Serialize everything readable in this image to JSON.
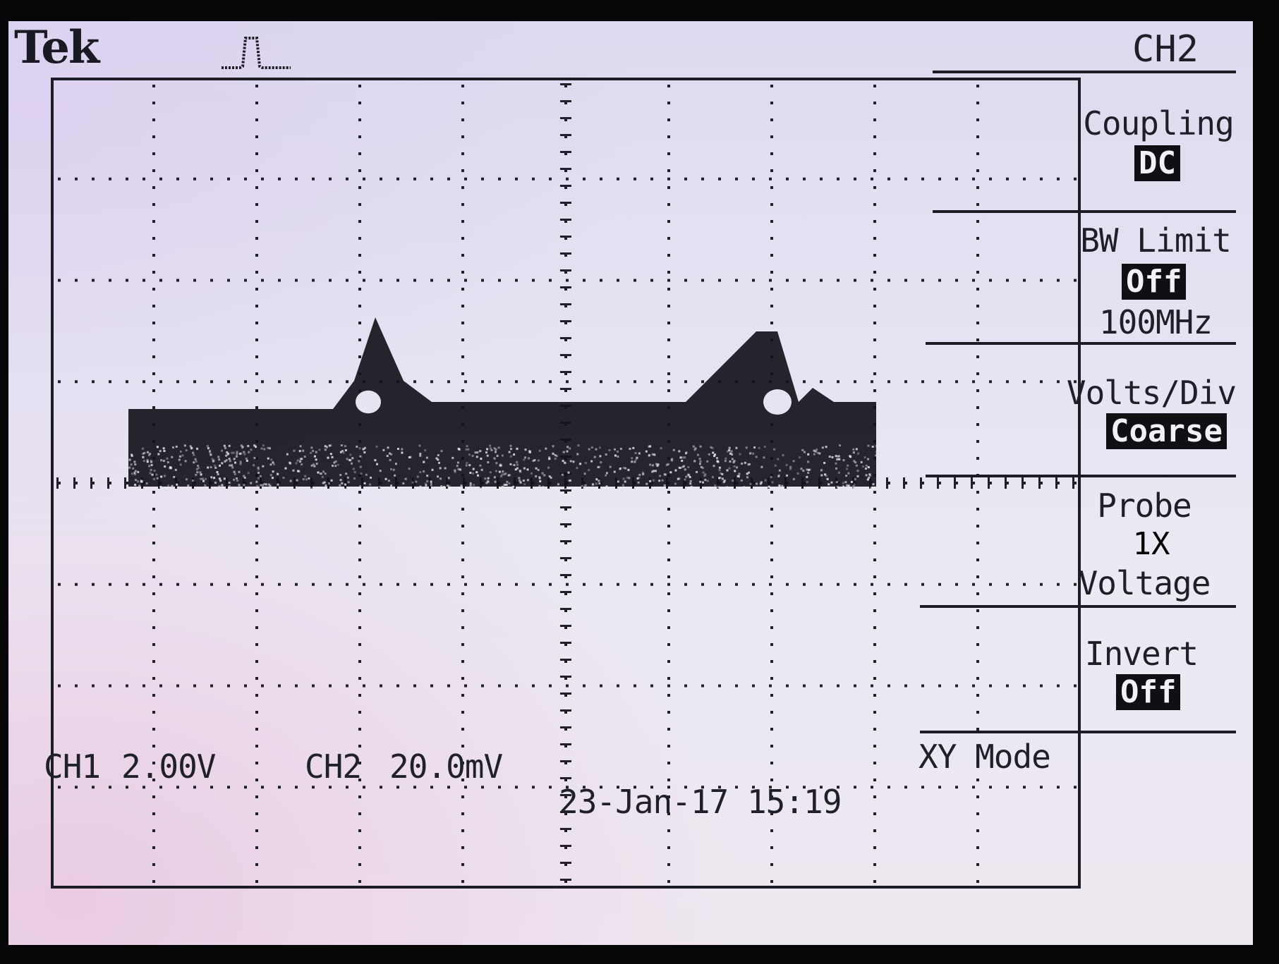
{
  "header": {
    "brand": "Tek",
    "trigger_icon": "trigger-pulse-icon"
  },
  "menu": {
    "title": "CH2",
    "items": [
      {
        "label": "Coupling",
        "value": "DC",
        "highlighted": true
      },
      {
        "label": "BW Limit",
        "value": "Off",
        "highlighted": true,
        "extra": "100MHz"
      },
      {
        "label": "Volts/Div",
        "value": "Coarse",
        "highlighted": true
      },
      {
        "label": "Probe",
        "value": "1X",
        "highlighted": false,
        "extra": "Voltage"
      },
      {
        "label": "Invert",
        "value": "Off",
        "highlighted": true
      }
    ]
  },
  "status": {
    "ch1_label": "CH1",
    "ch1_scale": "2.00V",
    "ch2_label": "CH2",
    "ch2_scale": "20.0mV",
    "mode": "XY Mode",
    "datetime": "23-Jan-17 15:19"
  },
  "colors": {
    "trace": "#15131c",
    "screen_bg": "#e4e2f1",
    "text": "#1f1f28"
  },
  "display": {
    "grid_divisions_x": 10,
    "grid_divisions_y": 8
  }
}
